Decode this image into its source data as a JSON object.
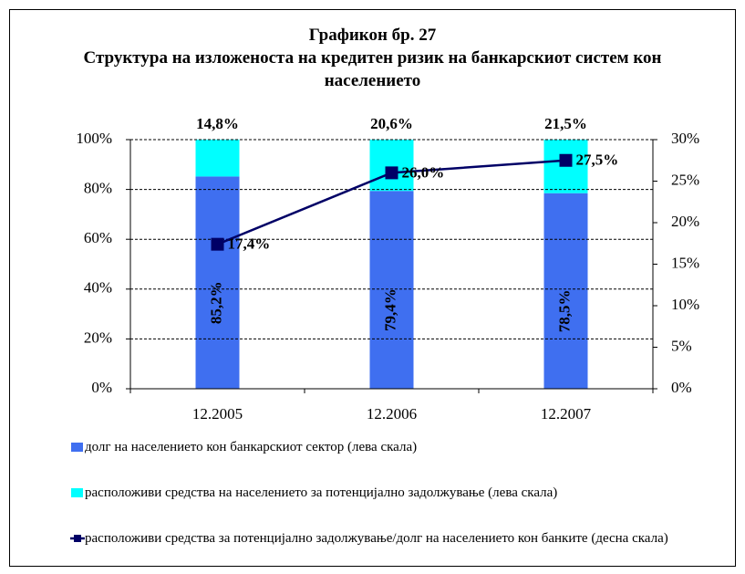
{
  "chart_data": {
    "type": "bar",
    "title": "Графикон бр. 27",
    "subtitle": "Структура на изложеноста на кредитен ризик на банкарскиот систем кон населението",
    "categories": [
      "12.2005",
      "12.2006",
      "12.2007"
    ],
    "series": [
      {
        "name": "долг на населението кон банкарскиот сектор (лева скала)",
        "color": "#3f6ff0",
        "values": [
          85.2,
          79.4,
          78.5
        ],
        "value_labels": [
          "85,2%",
          "79,4%",
          "78,5%"
        ]
      },
      {
        "name": "расположиви средства на населението за потенцијално задолжување (лева скала)",
        "color": "#00ffff",
        "values": [
          14.8,
          20.6,
          21.5
        ],
        "value_labels": [
          "14,8%",
          "20,6%",
          "21,5%"
        ]
      },
      {
        "name": "расположиви средства за потенцијално задолжување/долг на населението кон банките (десна скала)",
        "color": "#000066",
        "type": "line",
        "axis": "y2",
        "values": [
          17.4,
          26.0,
          27.5
        ],
        "value_labels": [
          "17,4%",
          "26,0%",
          "27,5%"
        ]
      }
    ],
    "stacked": true,
    "grid": true,
    "ylim": [
      0,
      100
    ],
    "yticks": [
      {
        "value": 0,
        "label": "0%"
      },
      {
        "value": 20,
        "label": "20%"
      },
      {
        "value": 40,
        "label": "40%"
      },
      {
        "value": 60,
        "label": "60%"
      },
      {
        "value": 80,
        "label": "80%"
      },
      {
        "value": 100,
        "label": "100%"
      }
    ],
    "y2lim": [
      0,
      30
    ],
    "y2ticks": [
      {
        "value": 0,
        "label": "0%"
      },
      {
        "value": 5,
        "label": "5%"
      },
      {
        "value": 10,
        "label": "10%"
      },
      {
        "value": 15,
        "label": "15%"
      },
      {
        "value": 20,
        "label": "20%"
      },
      {
        "value": 25,
        "label": "25%"
      },
      {
        "value": 30,
        "label": "30%"
      }
    ]
  }
}
